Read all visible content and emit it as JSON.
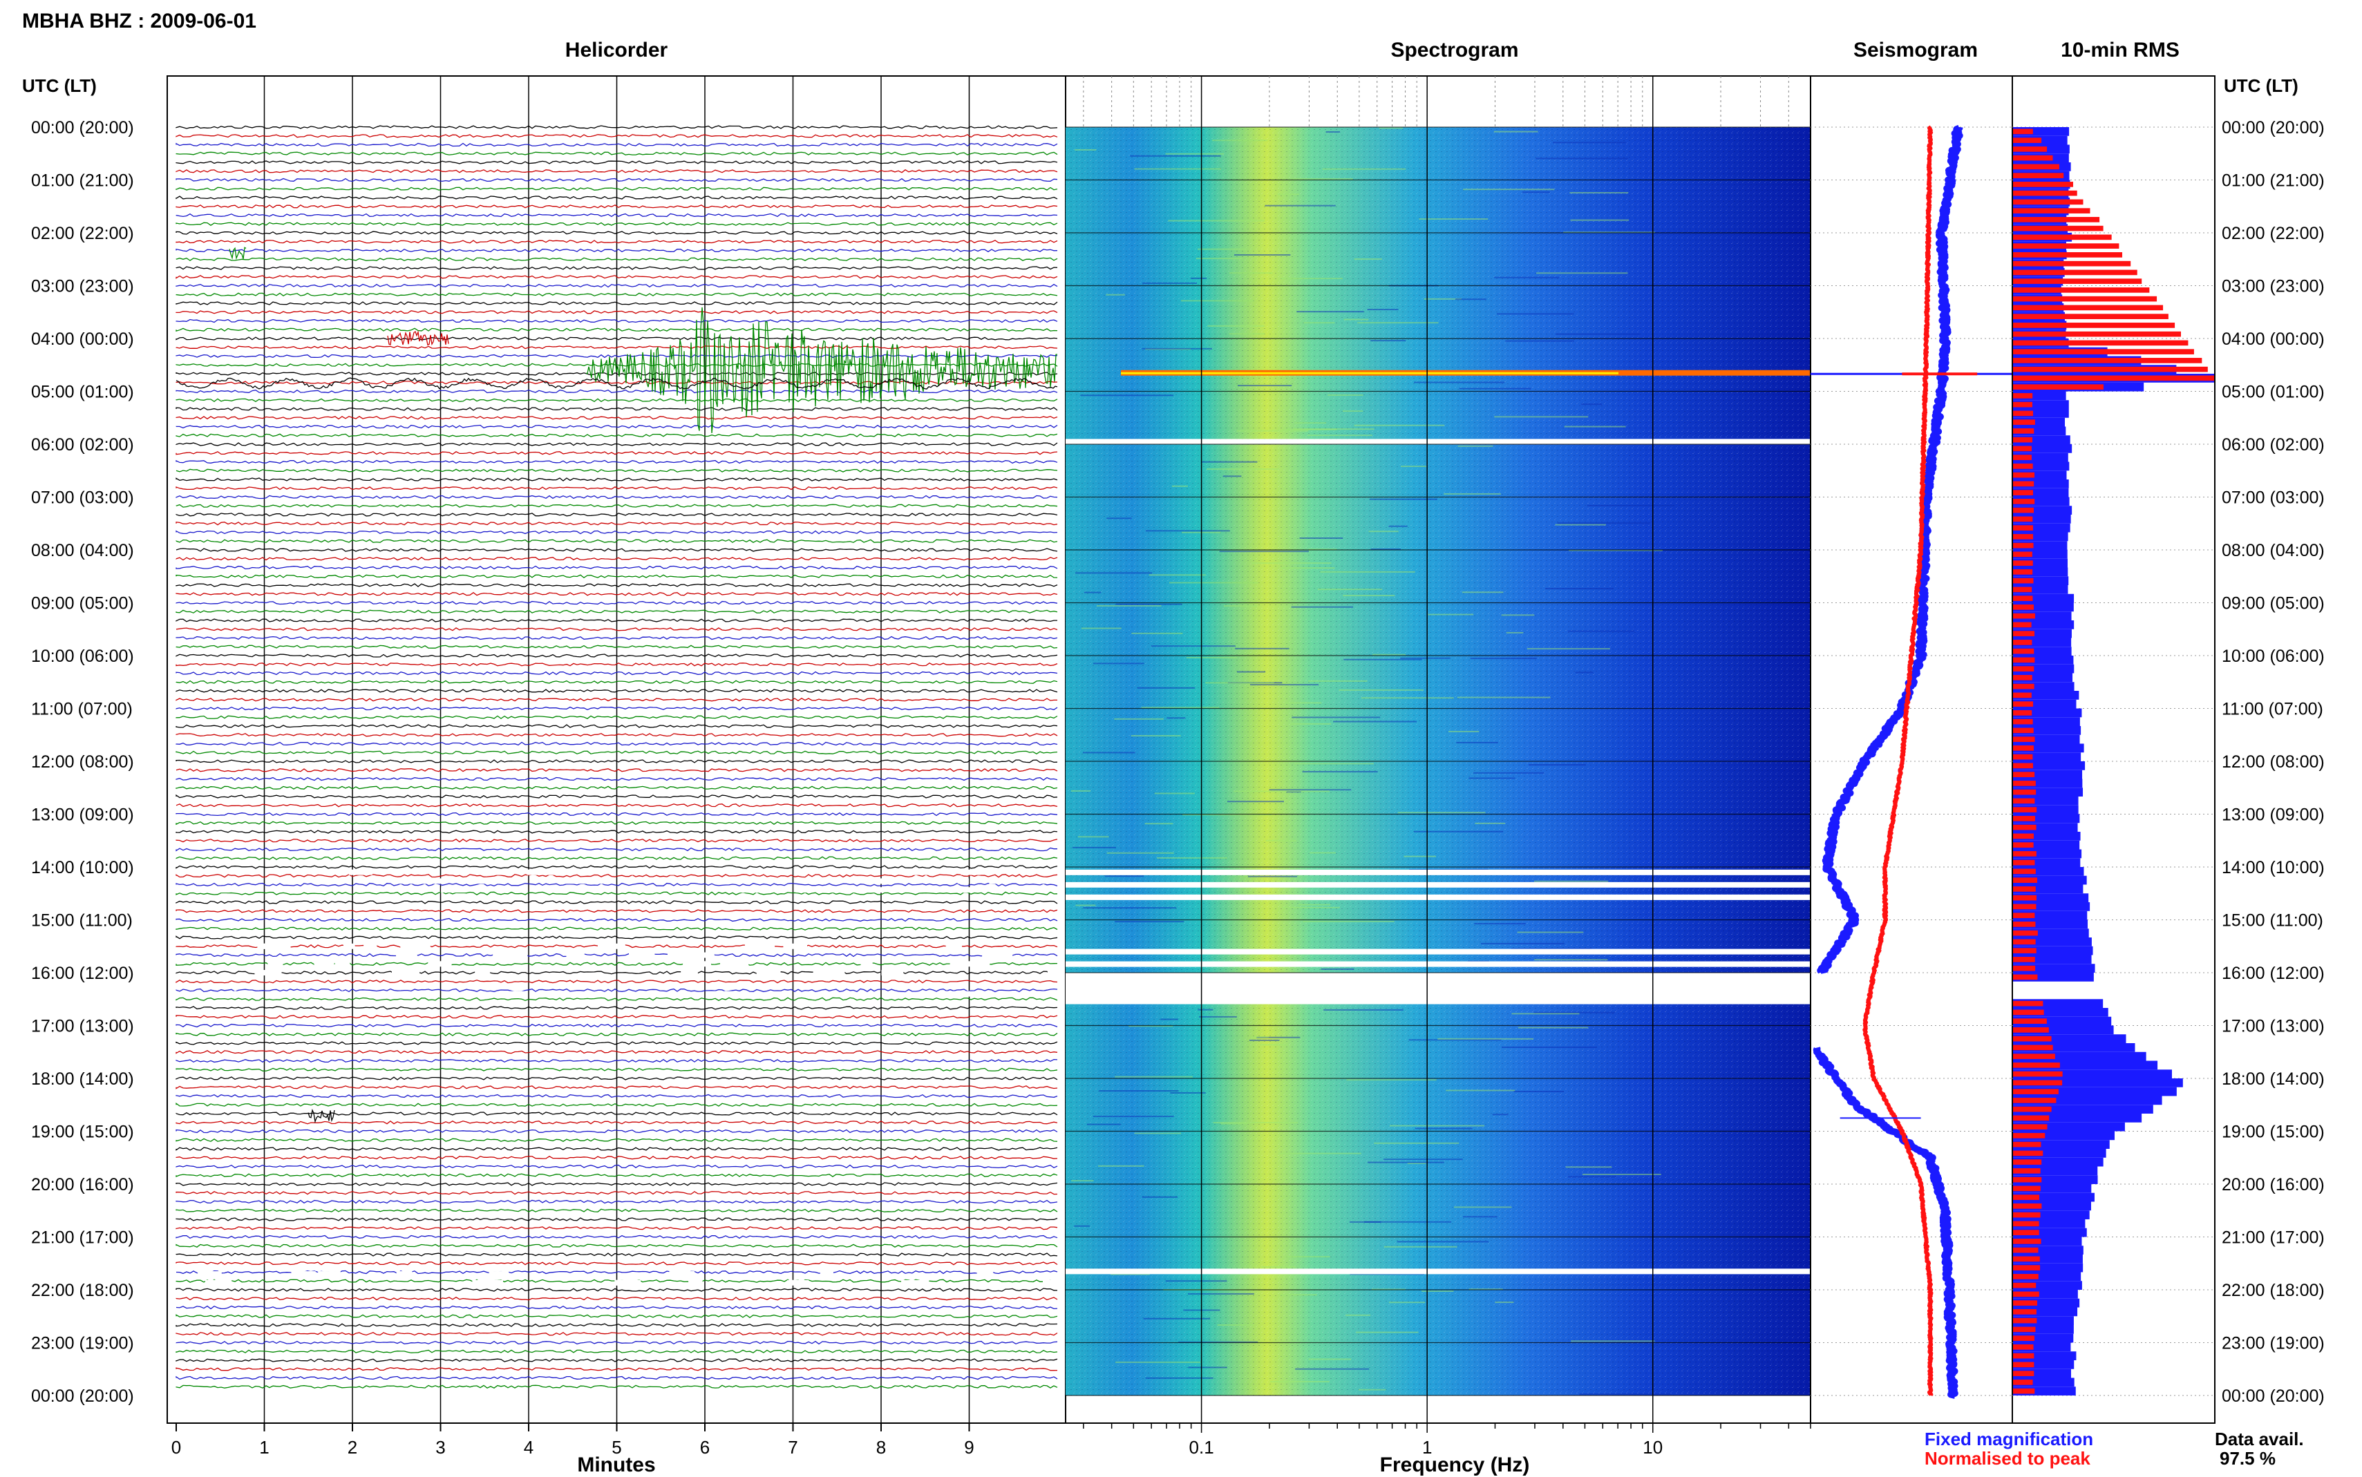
{
  "header": {
    "station_title": "MBHA BHZ : 2009-06-01",
    "helicorder_title": "Helicorder",
    "spectrogram_title": "Spectrogram",
    "seismogram_title": "Seismogram",
    "rms_title": "10-min RMS",
    "time_axis_label_left": "UTC (LT)",
    "time_axis_label_right": "UTC (LT)"
  },
  "time_labels": [
    "00:00 (20:00)",
    "01:00 (21:00)",
    "02:00 (22:00)",
    "03:00 (23:00)",
    "04:00 (00:00)",
    "05:00 (01:00)",
    "06:00 (02:00)",
    "07:00 (03:00)",
    "08:00 (04:00)",
    "09:00 (05:00)",
    "10:00 (06:00)",
    "11:00 (07:00)",
    "12:00 (08:00)",
    "13:00 (09:00)",
    "14:00 (10:00)",
    "15:00 (11:00)",
    "16:00 (12:00)",
    "17:00 (13:00)",
    "18:00 (14:00)",
    "19:00 (15:00)",
    "20:00 (16:00)",
    "21:00 (17:00)",
    "22:00 (18:00)",
    "23:00 (19:00)",
    "00:00 (20:00)"
  ],
  "footer": {
    "minutes_label": "Minutes",
    "frequency_label": "Frequency (Hz)",
    "legend_fixed": "Fixed magnification",
    "legend_normalised": "Normalised to peak",
    "data_avail_label": "Data avail.",
    "data_avail_value": "97.5 %"
  },
  "colors": {
    "fixed": "#1a1aff",
    "normalised": "#ff1111",
    "trace_colors": [
      "#000000",
      "#cc0000",
      "#1a1acc",
      "#008800"
    ]
  },
  "chart_data": [
    {
      "type": "line",
      "name": "helicorder",
      "xlabel": "Minutes",
      "x_ticks": [
        "0",
        "1",
        "2",
        "3",
        "4",
        "5",
        "6",
        "7",
        "8",
        "9"
      ],
      "xlim": [
        0,
        10
      ],
      "y_range_hours": [
        0,
        24
      ],
      "trace_interval_minutes": 10,
      "events": [
        {
          "hour": 4.6,
          "start_min": 4.65,
          "end_min": 10,
          "peak_min": 6.6,
          "color": "green"
        },
        {
          "hour": 4.0,
          "start_min": 2.4,
          "end_min": 3.1,
          "color": "red"
        },
        {
          "hour": 2.4,
          "start_min": 0.6,
          "end_min": 0.8,
          "color": "green"
        },
        {
          "hour": 18.7,
          "start_min": 1.5,
          "end_min": 1.8,
          "color": "black"
        }
      ],
      "data_gaps_hours": [
        [
          14.1,
          14.5
        ],
        [
          15.5,
          16.0
        ],
        [
          16.4,
          16.5
        ],
        [
          21.7,
          21.9
        ]
      ]
    },
    {
      "type": "heatmap",
      "name": "spectrogram",
      "xlabel": "Frequency (Hz)",
      "x_scale": "log",
      "xlim": [
        0.025,
        50
      ],
      "x_ticks": [
        "0.1",
        "1",
        "10"
      ],
      "y_range_hours": [
        0,
        24
      ],
      "peak_band_hz": [
        0.15,
        0.4
      ],
      "gaps_hours": [
        [
          5.9,
          6.0
        ],
        [
          14.05,
          14.55
        ],
        [
          15.55,
          16.5
        ],
        [
          21.6,
          21.8
        ]
      ],
      "event_hour": 4.65
    },
    {
      "type": "line",
      "name": "seismogram",
      "series": [
        {
          "name": "Fixed magnification",
          "hours": [
            0,
            2,
            4,
            5,
            7,
            10,
            11,
            12,
            13,
            14,
            15,
            16,
            17.5,
            18.5,
            19.5,
            20.5,
            22,
            24
          ],
          "values": [
            0.75,
            0.66,
            0.68,
            0.66,
            0.58,
            0.55,
            0.45,
            0.25,
            0.1,
            0.05,
            0.2,
            0.02,
            0.0,
            0.2,
            0.6,
            0.68,
            0.7,
            0.72
          ]
        },
        {
          "name": "Normalised to peak",
          "hours": [
            0,
            4,
            8,
            12,
            14,
            15,
            16,
            17,
            18,
            19,
            20,
            22,
            24
          ],
          "values": [
            0.6,
            0.58,
            0.55,
            0.45,
            0.36,
            0.36,
            0.3,
            0.25,
            0.3,
            0.45,
            0.55,
            0.6,
            0.6
          ]
        }
      ]
    },
    {
      "type": "bar",
      "name": "10-min RMS",
      "series": [
        {
          "name": "Fixed magnification",
          "hours": [
            0,
            1,
            2,
            3,
            4,
            4.67,
            5,
            6,
            8,
            10,
            11,
            12,
            13,
            14,
            15,
            16,
            17,
            17.5,
            18,
            18.5,
            19,
            20,
            21,
            22,
            23,
            24
          ],
          "values": [
            0.28,
            0.28,
            0.28,
            0.25,
            0.28,
            1.0,
            0.26,
            0.28,
            0.28,
            0.3,
            0.33,
            0.35,
            0.33,
            0.35,
            0.38,
            0.4,
            0.5,
            0.65,
            0.85,
            0.7,
            0.5,
            0.4,
            0.35,
            0.33,
            0.3,
            0.3
          ]
        },
        {
          "name": "Normalised to peak",
          "hours": [
            0,
            4.67,
            5,
            10,
            16,
            18,
            19,
            24
          ],
          "values": [
            0.1,
            1.0,
            0.1,
            0.1,
            0.12,
            0.25,
            0.15,
            0.1
          ]
        }
      ]
    }
  ]
}
